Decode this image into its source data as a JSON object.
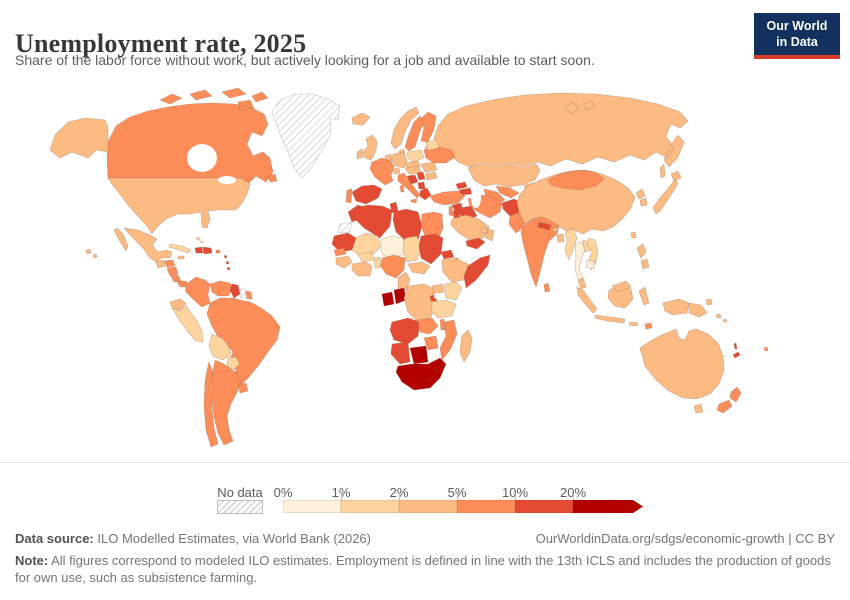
{
  "header": {
    "title": "Unemployment rate, 2025",
    "subtitle": "Share of the labor force without work, but actively looking for a job and available to start soon."
  },
  "logo": {
    "line1": "Our World",
    "line2": "in Data",
    "bg_color": "#12315e",
    "bar_color": "#dc3b2c"
  },
  "footer": {
    "source_label": "Data source:",
    "source_text": "ILO Modelled Estimates, via World Bank (2026)",
    "link": "OurWorldinData.org/sdgs/economic-growth",
    "separator": "|",
    "license": "CC BY",
    "note_label": "Note:",
    "note_text": "All figures correspond to modeled ILO estimates. Employment is defined in line with the 13th ICLS and includes the production of goods for own use, such as subsistence farming."
  },
  "chart_data": {
    "type": "choropleth_map",
    "title": "Unemployment rate, 2025",
    "unit": "% of labor force",
    "projection": "world",
    "legend": {
      "no_data_label": "No data",
      "tick_labels": [
        "0%",
        "1%",
        "2%",
        "5%",
        "10%",
        "20%"
      ],
      "bins": [
        {
          "label": "0-1%",
          "color": "#fef0d9"
        },
        {
          "label": "1-2%",
          "color": "#fdd49e"
        },
        {
          "label": "2-5%",
          "color": "#fdbb84"
        },
        {
          "label": "5-10%",
          "color": "#fc8d59"
        },
        {
          "label": "10-20%",
          "color": "#e34a33"
        },
        {
          "label": "20%+",
          "color": "#b30000"
        }
      ],
      "bin_zero_means": "no-data"
    },
    "countries": [
      {
        "id": "russia",
        "name": "Russia",
        "bin": 3
      },
      {
        "id": "canada",
        "name": "Canada",
        "bin": 4
      },
      {
        "id": "usa",
        "name": "United States",
        "bin": 3
      },
      {
        "id": "greenland",
        "name": "Greenland",
        "bin": 0
      },
      {
        "id": "mexico",
        "name": "Mexico",
        "bin": 3
      },
      {
        "id": "guatemala",
        "name": "Guatemala",
        "bin": 3
      },
      {
        "id": "honduras",
        "name": "Honduras",
        "bin": 4
      },
      {
        "id": "nicaragua",
        "name": "Nicaragua",
        "bin": 4
      },
      {
        "id": "costa-rica",
        "name": "Costa Rica",
        "bin": 4
      },
      {
        "id": "panama",
        "name": "Panama",
        "bin": 4
      },
      {
        "id": "cuba",
        "name": "Cuba",
        "bin": 2
      },
      {
        "id": "jamaica",
        "name": "Jamaica",
        "bin": 3
      },
      {
        "id": "haiti",
        "name": "Haiti",
        "bin": 5
      },
      {
        "id": "dominican-republic",
        "name": "Dominican Republic",
        "bin": 5
      },
      {
        "id": "puerto-rico",
        "name": "Puerto Rico",
        "bin": 4
      },
      {
        "id": "lesser-antilles",
        "name": "Lesser Antilles",
        "bin": 5
      },
      {
        "id": "bahamas",
        "name": "Bahamas",
        "bin": 2
      },
      {
        "id": "colombia",
        "name": "Colombia",
        "bin": 4
      },
      {
        "id": "venezuela",
        "name": "Venezuela",
        "bin": 4
      },
      {
        "id": "guyana",
        "name": "Guyana",
        "bin": 5
      },
      {
        "id": "suriname",
        "name": "Suriname",
        "bin": 0
      },
      {
        "id": "french-guiana",
        "name": "French Guiana",
        "bin": 4
      },
      {
        "id": "ecuador",
        "name": "Ecuador",
        "bin": 3
      },
      {
        "id": "peru",
        "name": "Peru",
        "bin": 2
      },
      {
        "id": "brazil",
        "name": "Brazil",
        "bin": 4
      },
      {
        "id": "bolivia",
        "name": "Bolivia",
        "bin": 2
      },
      {
        "id": "paraguay",
        "name": "Paraguay",
        "bin": 2
      },
      {
        "id": "argentina",
        "name": "Argentina",
        "bin": 4
      },
      {
        "id": "chile",
        "name": "Chile",
        "bin": 4
      },
      {
        "id": "uruguay",
        "name": "Uruguay",
        "bin": 4
      },
      {
        "id": "iceland",
        "name": "Iceland",
        "bin": 3
      },
      {
        "id": "norway",
        "name": "Norway",
        "bin": 3
      },
      {
        "id": "sweden",
        "name": "Sweden",
        "bin": 4
      },
      {
        "id": "finland",
        "name": "Finland",
        "bin": 4
      },
      {
        "id": "baltics",
        "name": "Baltic states",
        "bin": 3
      },
      {
        "id": "denmark",
        "name": "Denmark",
        "bin": 3
      },
      {
        "id": "uk",
        "name": "United Kingdom",
        "bin": 3
      },
      {
        "id": "ireland",
        "name": "Ireland",
        "bin": 3
      },
      {
        "id": "benelux",
        "name": "Netherlands and Belgium",
        "bin": 3
      },
      {
        "id": "germany",
        "name": "Germany",
        "bin": 3
      },
      {
        "id": "poland",
        "name": "Poland",
        "bin": 2
      },
      {
        "id": "czech-slovakia",
        "name": "Czechia and Slovakia",
        "bin": 3
      },
      {
        "id": "france",
        "name": "France",
        "bin": 4
      },
      {
        "id": "switzerland",
        "name": "Switzerland",
        "bin": 3
      },
      {
        "id": "austria-hungary",
        "name": "Austria and Hungary",
        "bin": 3
      },
      {
        "id": "italy",
        "name": "Italy",
        "bin": 4
      },
      {
        "id": "spain",
        "name": "Spain",
        "bin": 5
      },
      {
        "id": "portugal",
        "name": "Portugal",
        "bin": 4
      },
      {
        "id": "croatia-bosnia",
        "name": "Croatia and Bosnia",
        "bin": 5
      },
      {
        "id": "serbia",
        "name": "Serbia",
        "bin": 5
      },
      {
        "id": "albania-macedonia",
        "name": "Albania and North Macedonia",
        "bin": 5
      },
      {
        "id": "greece",
        "name": "Greece",
        "bin": 5
      },
      {
        "id": "romania",
        "name": "Romania",
        "bin": 3
      },
      {
        "id": "bulgaria",
        "name": "Bulgaria",
        "bin": 3
      },
      {
        "id": "ukraine",
        "name": "Ukraine",
        "bin": 4
      },
      {
        "id": "belarus",
        "name": "Belarus",
        "bin": 2
      },
      {
        "id": "kazakhstan",
        "name": "Kazakhstan",
        "bin": 3
      },
      {
        "id": "uzbekistan",
        "name": "Uzbekistan",
        "bin": 4
      },
      {
        "id": "turkmenistan",
        "name": "Turkmenistan",
        "bin": 4
      },
      {
        "id": "kyrgyzstan",
        "name": "Kyrgyzstan",
        "bin": 3
      },
      {
        "id": "tajikistan",
        "name": "Tajikistan",
        "bin": 5
      },
      {
        "id": "georgia",
        "name": "Georgia",
        "bin": 5
      },
      {
        "id": "armenia-azerbaijan",
        "name": "Armenia and Azerbaijan",
        "bin": 5
      },
      {
        "id": "turkey",
        "name": "Turkey",
        "bin": 4
      },
      {
        "id": "syria",
        "name": "Syria",
        "bin": 5
      },
      {
        "id": "iraq",
        "name": "Iraq",
        "bin": 5
      },
      {
        "id": "israel-lebanon",
        "name": "Israel and Lebanon",
        "bin": 4
      },
      {
        "id": "jordan",
        "name": "Jordan",
        "bin": 5
      },
      {
        "id": "saudi-arabia",
        "name": "Saudi Arabia",
        "bin": 3
      },
      {
        "id": "yemen",
        "name": "Yemen",
        "bin": 5
      },
      {
        "id": "oman",
        "name": "Oman",
        "bin": 3
      },
      {
        "id": "uae-qatar",
        "name": "UAE and Qatar",
        "bin": 3
      },
      {
        "id": "iran",
        "name": "Iran",
        "bin": 4
      },
      {
        "id": "afghanistan",
        "name": "Afghanistan",
        "bin": 5
      },
      {
        "id": "pakistan",
        "name": "Pakistan",
        "bin": 4
      },
      {
        "id": "china",
        "name": "China",
        "bin": 3
      },
      {
        "id": "mongolia",
        "name": "Mongolia",
        "bin": 4
      },
      {
        "id": "india",
        "name": "India",
        "bin": 4
      },
      {
        "id": "nepal",
        "name": "Nepal",
        "bin": 5
      },
      {
        "id": "bhutan",
        "name": "Bhutan",
        "bin": 3
      },
      {
        "id": "bangladesh",
        "name": "Bangladesh",
        "bin": 3
      },
      {
        "id": "sri-lanka",
        "name": "Sri Lanka",
        "bin": 4
      },
      {
        "id": "myanmar",
        "name": "Myanmar",
        "bin": 2
      },
      {
        "id": "thailand",
        "name": "Thailand",
        "bin": 1
      },
      {
        "id": "laos",
        "name": "Laos",
        "bin": 2
      },
      {
        "id": "vietnam",
        "name": "Vietnam",
        "bin": 2
      },
      {
        "id": "cambodia",
        "name": "Cambodia",
        "bin": 1
      },
      {
        "id": "north-korea",
        "name": "North Korea",
        "bin": 3
      },
      {
        "id": "south-korea",
        "name": "South Korea",
        "bin": 3
      },
      {
        "id": "japan",
        "name": "Japan",
        "bin": 3
      },
      {
        "id": "taiwan",
        "name": "Taiwan",
        "bin": 3
      },
      {
        "id": "philippines",
        "name": "Philippines",
        "bin": 3
      },
      {
        "id": "indonesia",
        "name": "Indonesia",
        "bin": 3
      },
      {
        "id": "malaysia",
        "name": "Malaysia",
        "bin": 3
      },
      {
        "id": "timor",
        "name": "East Timor",
        "bin": 4
      },
      {
        "id": "papua-new-guinea",
        "name": "Papua New Guinea",
        "bin": 3
      },
      {
        "id": "solomon-islands",
        "name": "Solomon Islands",
        "bin": 3
      },
      {
        "id": "australia",
        "name": "Australia",
        "bin": 3
      },
      {
        "id": "new-zealand",
        "name": "New Zealand",
        "bin": 4
      },
      {
        "id": "new-caledonia",
        "name": "New Caledonia",
        "bin": 5
      },
      {
        "id": "vanuatu",
        "name": "Vanuatu",
        "bin": 5
      },
      {
        "id": "fiji",
        "name": "Fiji",
        "bin": 4
      },
      {
        "id": "morocco",
        "name": "Morocco",
        "bin": 5
      },
      {
        "id": "western-sahara",
        "name": "Western Sahara",
        "bin": 0
      },
      {
        "id": "algeria",
        "name": "Algeria",
        "bin": 5
      },
      {
        "id": "tunisia",
        "name": "Tunisia",
        "bin": 5
      },
      {
        "id": "libya",
        "name": "Libya",
        "bin": 5
      },
      {
        "id": "egypt",
        "name": "Egypt",
        "bin": 4
      },
      {
        "id": "mauritania",
        "name": "Mauritania",
        "bin": 5
      },
      {
        "id": "mali",
        "name": "Mali",
        "bin": 2
      },
      {
        "id": "niger",
        "name": "Niger",
        "bin": 1
      },
      {
        "id": "chad",
        "name": "Chad",
        "bin": 2
      },
      {
        "id": "sudan",
        "name": "Sudan",
        "bin": 5
      },
      {
        "id": "eritrea",
        "name": "Eritrea",
        "bin": 5
      },
      {
        "id": "djibouti",
        "name": "Djibouti",
        "bin": 6
      },
      {
        "id": "ethiopia",
        "name": "Ethiopia",
        "bin": 3
      },
      {
        "id": "somalia",
        "name": "Somalia",
        "bin": 5
      },
      {
        "id": "senegal",
        "name": "Senegal",
        "bin": 4
      },
      {
        "id": "guinea",
        "name": "Guinea",
        "bin": 3
      },
      {
        "id": "ivory-coast-ghana",
        "name": "Ivory Coast and Ghana",
        "bin": 3
      },
      {
        "id": "burkina-faso",
        "name": "Burkina Faso",
        "bin": 2
      },
      {
        "id": "togo-benin",
        "name": "Togo and Benin",
        "bin": 2
      },
      {
        "id": "nigeria",
        "name": "Nigeria",
        "bin": 4
      },
      {
        "id": "cameroon",
        "name": "Cameroon",
        "bin": 3
      },
      {
        "id": "central-african-republic",
        "name": "Central African Republic",
        "bin": 3
      },
      {
        "id": "gabon",
        "name": "Gabon",
        "bin": 6
      },
      {
        "id": "congo",
        "name": "Congo",
        "bin": 6
      },
      {
        "id": "drc",
        "name": "Democratic Republic of Congo",
        "bin": 3
      },
      {
        "id": "uganda",
        "name": "Uganda",
        "bin": 3
      },
      {
        "id": "kenya",
        "name": "Kenya",
        "bin": 2
      },
      {
        "id": "rwanda-burundi",
        "name": "Rwanda and Burundi",
        "bin": 5
      },
      {
        "id": "tanzania",
        "name": "Tanzania",
        "bin": 2
      },
      {
        "id": "angola",
        "name": "Angola",
        "bin": 5
      },
      {
        "id": "zambia",
        "name": "Zambia",
        "bin": 4
      },
      {
        "id": "malawi",
        "name": "Malawi",
        "bin": 4
      },
      {
        "id": "mozambique",
        "name": "Mozambique",
        "bin": 4
      },
      {
        "id": "zimbabwe",
        "name": "Zimbabwe",
        "bin": 4
      },
      {
        "id": "namibia",
        "name": "Namibia",
        "bin": 5
      },
      {
        "id": "botswana",
        "name": "Botswana",
        "bin": 6
      },
      {
        "id": "south-africa",
        "name": "South Africa",
        "bin": 6
      },
      {
        "id": "eswatini",
        "name": "Eswatini",
        "bin": 6
      },
      {
        "id": "lesotho",
        "name": "Lesotho",
        "bin": 6
      },
      {
        "id": "madagascar",
        "name": "Madagascar",
        "bin": 3
      }
    ]
  }
}
